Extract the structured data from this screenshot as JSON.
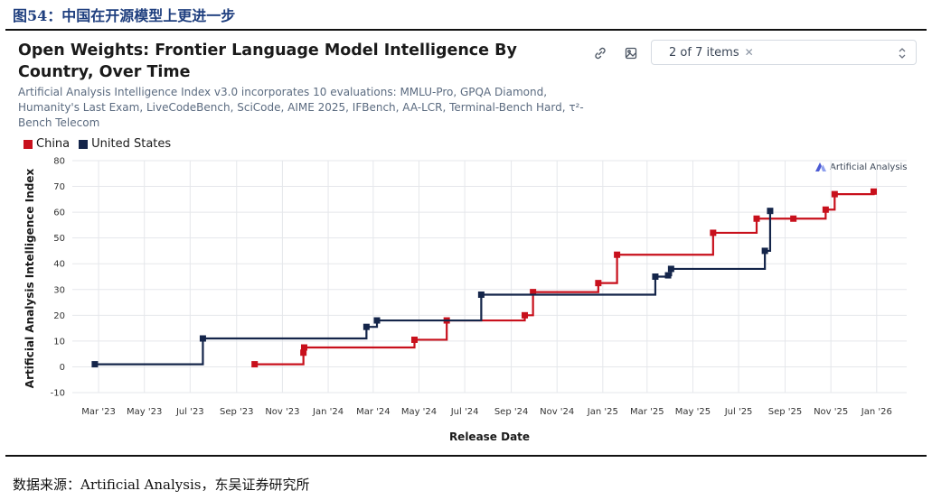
{
  "figure": {
    "caption": "图54：中国在开源模型上更进一步",
    "source": "数据来源：Artificial Analysis，东吴证券研究所"
  },
  "header": {
    "selector_text": "2 of 7 items",
    "link_icon": "link-icon",
    "image_icon": "image-download-icon"
  },
  "watermark": "Artificial Analysis",
  "colors": {
    "china": "#c8101c",
    "us": "#14254a",
    "grid": "#e5e7eb"
  },
  "chart_data": {
    "type": "line",
    "step": true,
    "title": "Open Weights: Frontier Language Model Intelligence By Country, Over Time",
    "subtitle": "Artificial Analysis Intelligence Index v3.0 incorporates 10 evaluations: MMLU-Pro, GPQA Diamond, Humanity's Last Exam, LiveCodeBench, SciCode, AIME 2025, IFBench, AA-LCR, Terminal-Bench Hard, τ²-Bench Telecom",
    "xlabel": "Release Date",
    "ylabel": "Artificial Analysis Intelligence Index",
    "ylim": [
      -10,
      80
    ],
    "yticks": [
      -10,
      0,
      10,
      20,
      30,
      40,
      50,
      60,
      70,
      80
    ],
    "xlim": [
      "2023-01-25",
      "2026-02-10"
    ],
    "xticks": [
      {
        "date": "2023-03-01",
        "label": "Mar '23"
      },
      {
        "date": "2023-05-01",
        "label": "May '23"
      },
      {
        "date": "2023-07-01",
        "label": "Jul '23"
      },
      {
        "date": "2023-09-01",
        "label": "Sep '23"
      },
      {
        "date": "2023-11-01",
        "label": "Nov '23"
      },
      {
        "date": "2024-01-01",
        "label": "Jan '24"
      },
      {
        "date": "2024-03-01",
        "label": "Mar '24"
      },
      {
        "date": "2024-05-01",
        "label": "May '24"
      },
      {
        "date": "2024-07-01",
        "label": "Jul '24"
      },
      {
        "date": "2024-09-01",
        "label": "Sep '24"
      },
      {
        "date": "2024-11-01",
        "label": "Nov '24"
      },
      {
        "date": "2025-01-01",
        "label": "Jan '25"
      },
      {
        "date": "2025-03-01",
        "label": "Mar '25"
      },
      {
        "date": "2025-05-01",
        "label": "May '25"
      },
      {
        "date": "2025-07-01",
        "label": "Jul '25"
      },
      {
        "date": "2025-09-01",
        "label": "Sep '25"
      },
      {
        "date": "2025-11-01",
        "label": "Nov '25"
      },
      {
        "date": "2026-01-01",
        "label": "Jan '26"
      }
    ],
    "series": [
      {
        "name": "China",
        "color": "#c8101c",
        "points": [
          {
            "x": "2023-09-25",
            "y": 1
          },
          {
            "x": "2023-11-29",
            "y": 5.5
          },
          {
            "x": "2023-11-30",
            "y": 7.5
          },
          {
            "x": "2024-04-25",
            "y": 10.5
          },
          {
            "x": "2024-06-07",
            "y": 18
          },
          {
            "x": "2024-09-19",
            "y": 20
          },
          {
            "x": "2024-09-30",
            "y": 29
          },
          {
            "x": "2024-12-26",
            "y": 32.5
          },
          {
            "x": "2025-01-20",
            "y": 43.5
          },
          {
            "x": "2025-05-28",
            "y": 52
          },
          {
            "x": "2025-07-25",
            "y": 57.5
          },
          {
            "x": "2025-09-12",
            "y": 57.5
          },
          {
            "x": "2025-10-25",
            "y": 61
          },
          {
            "x": "2025-11-06",
            "y": 67
          },
          {
            "x": "2025-12-28",
            "y": 68
          }
        ]
      },
      {
        "name": "United States",
        "color": "#14254a",
        "points": [
          {
            "x": "2023-02-24",
            "y": 1
          },
          {
            "x": "2023-07-18",
            "y": 11
          },
          {
            "x": "2024-02-21",
            "y": 15.5
          },
          {
            "x": "2024-03-06",
            "y": 18
          },
          {
            "x": "2024-07-23",
            "y": 28
          },
          {
            "x": "2025-03-12",
            "y": 35
          },
          {
            "x": "2025-03-29",
            "y": 35.5
          },
          {
            "x": "2025-04-02",
            "y": 38
          },
          {
            "x": "2025-08-05",
            "y": 45
          },
          {
            "x": "2025-08-12",
            "y": 60.5
          }
        ]
      }
    ]
  }
}
